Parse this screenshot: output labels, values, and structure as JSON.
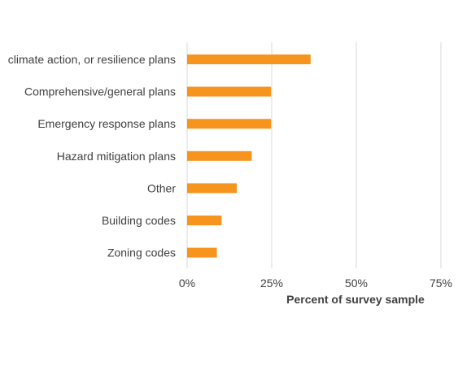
{
  "chart_data": {
    "type": "bar",
    "orientation": "horizontal",
    "categories": [
      "climate action, or resilience plans",
      "Comprehensive/general plans",
      "Emergency response plans",
      "Hazard mitigation plans",
      "Other",
      "Building codes",
      "Zoning codes"
    ],
    "values": [
      36.5,
      24.8,
      24.8,
      19.1,
      14.7,
      10.2,
      8.8
    ],
    "xlabel": "Percent of survey sample",
    "xlim": [
      0,
      75
    ],
    "xticks": [
      0,
      25,
      50,
      75
    ],
    "xtick_labels": [
      "0%",
      "25%",
      "50%",
      "75%"
    ],
    "grid": "vertical",
    "legend": "none",
    "bar_color": "#f7941d",
    "grid_color": "#d9d9d9"
  }
}
